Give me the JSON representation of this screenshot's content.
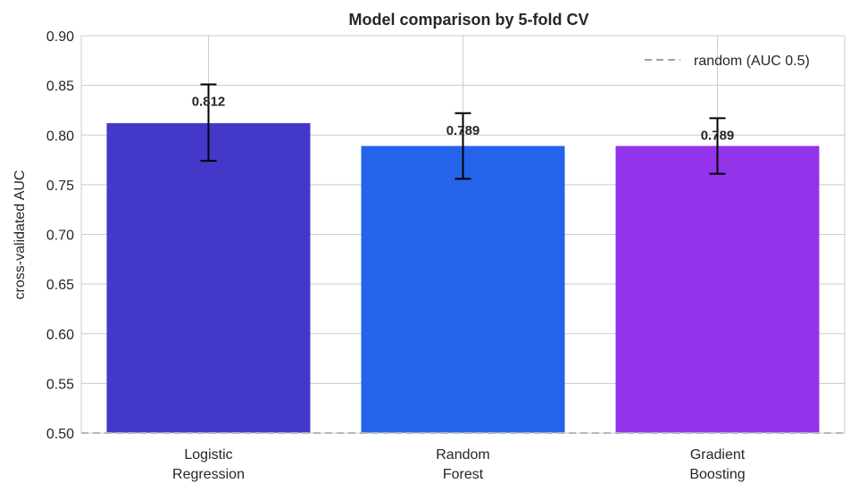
{
  "chart_data": {
    "type": "bar",
    "title": "Model comparison by 5-fold CV",
    "xlabel": "",
    "ylabel": "cross-validated AUC",
    "categories": [
      [
        "Logistic",
        "Regression"
      ],
      [
        "Random",
        "Forest"
      ],
      [
        "Gradient",
        "Boosting"
      ]
    ],
    "values": [
      0.812,
      0.789,
      0.789
    ],
    "value_labels": [
      "0.812",
      "0.789",
      "0.789"
    ],
    "error_low": [
      0.774,
      0.756,
      0.761
    ],
    "error_high": [
      0.851,
      0.822,
      0.817
    ],
    "colors": [
      "#4338CA",
      "#2563EB",
      "#9333EA"
    ],
    "ylim": [
      0.5,
      0.9
    ],
    "yticks": [
      "0.50",
      "0.55",
      "0.60",
      "0.65",
      "0.70",
      "0.75",
      "0.80",
      "0.85",
      "0.90"
    ],
    "grid": true,
    "reference_line": {
      "value": 0.5,
      "label": "random (AUC 0.5)",
      "color": "#94A3B8",
      "style": "dashed"
    },
    "legend_position": "top-right"
  }
}
